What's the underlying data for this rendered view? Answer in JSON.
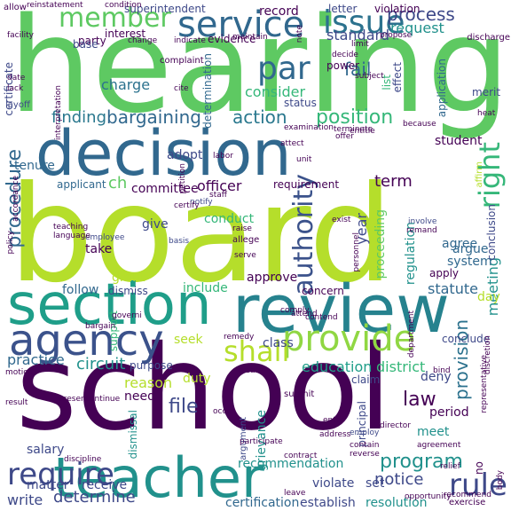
{
  "palette": {
    "dark_purple": "#440154",
    "indigo": "#3b528b",
    "blue": "#31688e",
    "teal": "#21918c",
    "green": "#35b779",
    "lime": "#b5de2b",
    "yellow_green": "#90d743"
  },
  "words": [
    {
      "text": "hearing",
      "color": "#5ec962"
    },
    {
      "text": "board",
      "color": "#b5de2b"
    },
    {
      "text": "school",
      "color": "#440154"
    },
    {
      "text": "decision",
      "color": "#31688e"
    },
    {
      "text": "review",
      "color": "#26828e"
    },
    {
      "text": "section",
      "color": "#1f9e89"
    },
    {
      "text": "teacher",
      "color": "#21918c"
    },
    {
      "text": "agency",
      "color": "#3b528b"
    },
    {
      "text": "service",
      "color": "#31688e"
    },
    {
      "text": "member",
      "color": "#5ec962"
    },
    {
      "text": "issue",
      "color": "#2c728e"
    },
    {
      "text": "provide",
      "color": "#90d743"
    },
    {
      "text": "par",
      "color": "#31688e"
    },
    {
      "text": "rule",
      "color": "#3e4989"
    },
    {
      "text": "require",
      "color": "#3e4989"
    },
    {
      "text": "shall",
      "color": "#b5de2b"
    },
    {
      "text": "right",
      "color": "#35b779"
    },
    {
      "text": "authority",
      "color": "#3b528b"
    },
    {
      "text": "bargaining",
      "color": "#31688e"
    },
    {
      "text": "action",
      "color": "#2a788e"
    },
    {
      "text": "position",
      "color": "#35b779"
    },
    {
      "text": "process",
      "color": "#3e4989"
    },
    {
      "text": "request",
      "color": "#21918c"
    },
    {
      "text": "procedure",
      "color": "#31688e"
    },
    {
      "text": "program",
      "color": "#21918c"
    },
    {
      "text": "provision",
      "color": "#2c728e"
    },
    {
      "text": "determine",
      "color": "#3e4989"
    },
    {
      "text": "circuit",
      "color": "#21918c"
    },
    {
      "text": "finding",
      "color": "#2a788e"
    },
    {
      "text": "charge",
      "color": "#2c728e"
    },
    {
      "text": "record",
      "color": "#440154"
    },
    {
      "text": "standard",
      "color": "#3e4989"
    },
    {
      "text": "fail",
      "color": "#31688e"
    },
    {
      "text": "consider",
      "color": "#35b779"
    },
    {
      "text": "file",
      "color": "#3e4989"
    },
    {
      "text": "law",
      "color": "#440154"
    },
    {
      "text": "matter",
      "color": "#3e4989"
    },
    {
      "text": "receive",
      "color": "#3e4989"
    },
    {
      "text": "write",
      "color": "#3e4989"
    },
    {
      "text": "practice",
      "color": "#31688e"
    },
    {
      "text": "meeting",
      "color": "#21918c"
    },
    {
      "text": "year",
      "color": "#3e4989"
    },
    {
      "text": "term",
      "color": "#440154"
    },
    {
      "text": "ch",
      "color": "#5ec962"
    },
    {
      "text": "education",
      "color": "#1f9e89"
    },
    {
      "text": "district",
      "color": "#35b779"
    },
    {
      "text": "regulation",
      "color": "#21918c"
    },
    {
      "text": "proceeding",
      "color": "#5ec962"
    },
    {
      "text": "recommendation",
      "color": "#21918c"
    },
    {
      "text": "certification",
      "color": "#31688e"
    },
    {
      "text": "establish",
      "color": "#3e4989"
    },
    {
      "text": "resolution",
      "color": "#21918c"
    },
    {
      "text": "notice",
      "color": "#3e4989"
    },
    {
      "text": "reason",
      "color": "#b5de2b"
    },
    {
      "text": "grievance",
      "color": "#21918c"
    },
    {
      "text": "dismissal",
      "color": "#21918c"
    },
    {
      "text": "argument",
      "color": "#3e4989"
    },
    {
      "text": "principal",
      "color": "#3e4989"
    },
    {
      "text": "period",
      "color": "#440154"
    },
    {
      "text": "deny",
      "color": "#3e4989"
    },
    {
      "text": "claim",
      "color": "#3e4989"
    },
    {
      "text": "meet",
      "color": "#21918c"
    },
    {
      "text": "violate",
      "color": "#3e4989"
    },
    {
      "text": "set",
      "color": "#3e4989"
    },
    {
      "text": "need",
      "color": "#440154"
    },
    {
      "text": "salary",
      "color": "#3e4989"
    },
    {
      "text": "seek",
      "color": "#b5de2b"
    },
    {
      "text": "class",
      "color": "#3e4989"
    },
    {
      "text": "conclude",
      "color": "#3e4989"
    },
    {
      "text": "concern",
      "color": "#440154"
    },
    {
      "text": "statute",
      "color": "#31688e"
    },
    {
      "text": "apply",
      "color": "#440154"
    },
    {
      "text": "day",
      "color": "#b5de2b"
    },
    {
      "text": "argue",
      "color": "#31688e"
    },
    {
      "text": "system",
      "color": "#31688e"
    },
    {
      "text": "agree",
      "color": "#31688e"
    },
    {
      "text": "conduct",
      "color": "#35b779"
    },
    {
      "text": "give",
      "color": "#3e4989"
    },
    {
      "text": "take",
      "color": "#440154"
    },
    {
      "text": "grant",
      "color": "#b5de2b"
    },
    {
      "text": "follow",
      "color": "#31688e"
    },
    {
      "text": "dismiss",
      "color": "#3e4989"
    },
    {
      "text": "include",
      "color": "#35b779"
    },
    {
      "text": "approve",
      "color": "#440154"
    },
    {
      "text": "duty",
      "color": "#b5de2b"
    },
    {
      "text": "purpose",
      "color": "#3e4989"
    },
    {
      "text": "committee",
      "color": "#440154"
    },
    {
      "text": "officer",
      "color": "#440154"
    },
    {
      "text": "applicant",
      "color": "#31688e"
    },
    {
      "text": "requirement",
      "color": "#440154"
    },
    {
      "text": "adopt",
      "color": "#3e4989"
    },
    {
      "text": "student",
      "color": "#440154"
    },
    {
      "text": "tenure",
      "color": "#31688e"
    },
    {
      "text": "evidence",
      "color": "#440154"
    },
    {
      "text": "interest",
      "color": "#440154"
    },
    {
      "text": "party",
      "color": "#440154"
    },
    {
      "text": "superintendent",
      "color": "#3e4989"
    },
    {
      "text": "violation",
      "color": "#440154"
    },
    {
      "text": "letter",
      "color": "#3e4989"
    },
    {
      "text": "status",
      "color": "#3e4989"
    },
    {
      "text": "effect",
      "color": "#3e4989"
    },
    {
      "text": "power",
      "color": "#440154"
    },
    {
      "text": "application",
      "color": "#31688e"
    },
    {
      "text": "list",
      "color": "#35b779"
    },
    {
      "text": "determination",
      "color": "#31688e"
    },
    {
      "text": "conclusion",
      "color": "#3e4989"
    },
    {
      "text": "support",
      "color": "#35b779"
    },
    {
      "text": "merit",
      "color": "#3e4989"
    },
    {
      "text": "base",
      "color": "#3e4989"
    },
    {
      "text": "certificate",
      "color": "#3e4989"
    },
    {
      "text": "layoff",
      "color": "#3e4989"
    },
    {
      "text": "complaint",
      "color": "#440154"
    },
    {
      "text": "discharge",
      "color": "#440154"
    },
    {
      "text": "allow",
      "color": "#440154"
    },
    {
      "text": "reinstatement",
      "color": "#440154"
    },
    {
      "text": "condition",
      "color": "#440154"
    },
    {
      "text": "affirm",
      "color": "#b5de2b"
    },
    {
      "text": "employee",
      "color": "#3e4989"
    },
    {
      "text": "basis",
      "color": "#3e4989"
    },
    {
      "text": "allege",
      "color": "#440154"
    },
    {
      "text": "staff",
      "color": "#440154"
    },
    {
      "text": "notify",
      "color": "#3e4989"
    },
    {
      "text": "certify",
      "color": "#440154"
    },
    {
      "text": "raise",
      "color": "#440154"
    },
    {
      "text": "serve",
      "color": "#440154"
    },
    {
      "text": "involve",
      "color": "#3e4989"
    },
    {
      "text": "remand",
      "color": "#440154"
    },
    {
      "text": "employ",
      "color": "#3e4989"
    },
    {
      "text": "exist",
      "color": "#440154"
    },
    {
      "text": "contain",
      "color": "#440154"
    },
    {
      "text": "reverse",
      "color": "#440154"
    },
    {
      "text": "agreement",
      "color": "#440154"
    },
    {
      "text": "submit",
      "color": "#440154"
    },
    {
      "text": "occur",
      "color": "#440154"
    },
    {
      "text": "continue",
      "color": "#440154"
    },
    {
      "text": "present",
      "color": "#440154"
    },
    {
      "text": "motion",
      "color": "#440154"
    },
    {
      "text": "result",
      "color": "#440154"
    },
    {
      "text": "discipline",
      "color": "#440154"
    },
    {
      "text": "contract",
      "color": "#440154"
    },
    {
      "text": "address",
      "color": "#440154"
    },
    {
      "text": "enter",
      "color": "#440154"
    },
    {
      "text": "participate",
      "color": "#440154"
    },
    {
      "text": "director",
      "color": "#440154"
    },
    {
      "text": "leave",
      "color": "#440154"
    },
    {
      "text": "relief",
      "color": "#440154"
    },
    {
      "text": "body",
      "color": "#440154"
    },
    {
      "text": "exercise",
      "color": "#440154"
    },
    {
      "text": "opportunity",
      "color": "#440154"
    },
    {
      "text": "recommend",
      "color": "#440154"
    },
    {
      "text": "attend",
      "color": "#440154"
    },
    {
      "text": "contend",
      "color": "#440154"
    },
    {
      "text": "bind",
      "color": "#440154"
    },
    {
      "text": "discretion",
      "color": "#440154"
    },
    {
      "text": "department",
      "color": "#440154"
    },
    {
      "text": "teaching",
      "color": "#440154"
    },
    {
      "text": "language",
      "color": "#440154"
    },
    {
      "text": "accordance",
      "color": "#440154"
    },
    {
      "text": "labor",
      "color": "#440154"
    },
    {
      "text": "attect",
      "color": "#440154"
    },
    {
      "text": "unit",
      "color": "#440154"
    },
    {
      "text": "offer",
      "color": "#440154"
    },
    {
      "text": "examination",
      "color": "#440154"
    },
    {
      "text": "terminate",
      "color": "#440154"
    },
    {
      "text": "entitle",
      "color": "#440154"
    },
    {
      "text": "subject",
      "color": "#440154"
    },
    {
      "text": "decide",
      "color": "#440154"
    },
    {
      "text": "cite",
      "color": "#440154"
    },
    {
      "text": "facility",
      "color": "#440154"
    },
    {
      "text": "lack",
      "color": "#440154"
    },
    {
      "text": "date",
      "color": "#440154"
    },
    {
      "text": "maintain",
      "color": "#440154"
    },
    {
      "text": "indicate",
      "color": "#440154"
    },
    {
      "text": "change",
      "color": "#440154"
    },
    {
      "text": "note",
      "color": "#440154"
    },
    {
      "text": "propose",
      "color": "#440154"
    },
    {
      "text": "limit",
      "color": "#440154"
    },
    {
      "text": "heat",
      "color": "#440154"
    },
    {
      "text": "because",
      "color": "#440154"
    },
    {
      "text": "personnel",
      "color": "#440154"
    },
    {
      "text": "remedy",
      "color": "#440154"
    },
    {
      "text": "bargain",
      "color": "#440154"
    },
    {
      "text": "governi",
      "color": "#440154"
    },
    {
      "text": "comply",
      "color": "#440154"
    },
    {
      "text": "petition",
      "color": "#440154"
    },
    {
      "text": "interpretation",
      "color": "#440154"
    },
    {
      "text": "representative",
      "color": "#440154"
    },
    {
      "text": "policy",
      "color": "#440154"
    },
    {
      "text": "create",
      "color": "#440154"
    },
    {
      "text": "no",
      "color": "#440154"
    }
  ]
}
